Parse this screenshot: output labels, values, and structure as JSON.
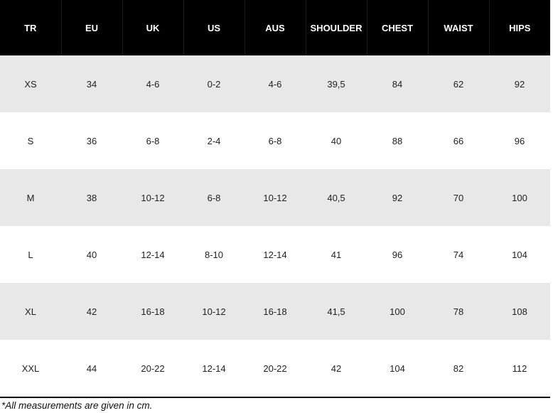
{
  "table": {
    "headers": [
      "TR",
      "EU",
      "UK",
      "US",
      "AUS",
      "SHOULDER",
      "CHEST",
      "WAIST",
      "HIPS"
    ],
    "rows": [
      [
        "XS",
        "34",
        "4-6",
        "0-2",
        "4-6",
        "39,5",
        "84",
        "62",
        "92"
      ],
      [
        "S",
        "36",
        "6-8",
        "2-4",
        "6-8",
        "40",
        "88",
        "66",
        "96"
      ],
      [
        "M",
        "38",
        "10-12",
        "6-8",
        "10-12",
        "40,5",
        "92",
        "70",
        "100"
      ],
      [
        "L",
        "40",
        "12-14",
        "8-10",
        "12-14",
        "41",
        "96",
        "74",
        "104"
      ],
      [
        "XL",
        "42",
        "16-18",
        "10-12",
        "16-18",
        "41,5",
        "100",
        "78",
        "108"
      ],
      [
        "XXL",
        "44",
        "20-22",
        "12-14",
        "20-22",
        "42",
        "104",
        "82",
        "112"
      ]
    ]
  },
  "footnote": "*All measurements are given in cm.",
  "colors": {
    "header_bg": "#000000",
    "header_text": "#ffffff",
    "row_shade": "#e8e8e8",
    "row_plain": "#ffffff"
  }
}
